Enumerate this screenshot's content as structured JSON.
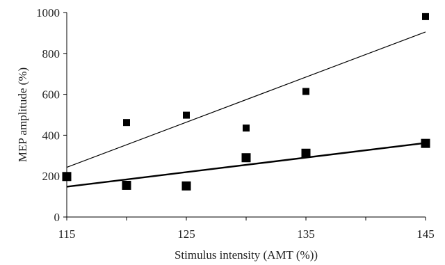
{
  "chart_data": {
    "type": "scatter",
    "title": "",
    "xlabel": "Stimulus intensity (AMT (%))",
    "ylabel": "MEP amplitude (%)",
    "xlim": [
      115,
      145
    ],
    "ylim": [
      0,
      1000
    ],
    "x_ticks": [
      115,
      120,
      125,
      130,
      135,
      140,
      145
    ],
    "x_tick_labels": [
      "115",
      "",
      "125",
      "",
      "135",
      "",
      "145"
    ],
    "y_ticks": [
      0,
      200,
      400,
      600,
      800,
      1000
    ],
    "y_tick_labels": [
      "0",
      "200",
      "400",
      "600",
      "800",
      "1000"
    ],
    "grid": false,
    "legend": "none",
    "series": [
      {
        "marker": "square-small",
        "color": "#000000",
        "points": [
          {
            "x": 120,
            "y": 462
          },
          {
            "x": 125,
            "y": 498
          },
          {
            "x": 130,
            "y": 435
          },
          {
            "x": 135,
            "y": 614
          },
          {
            "x": 145,
            "y": 980
          }
        ],
        "trendline": {
          "x": [
            115,
            145
          ],
          "y": [
            243,
            905
          ]
        }
      },
      {
        "marker": "square-large",
        "color": "#000000",
        "points": [
          {
            "x": 115,
            "y": 198
          },
          {
            "x": 120,
            "y": 155
          },
          {
            "x": 125,
            "y": 152
          },
          {
            "x": 130,
            "y": 290
          },
          {
            "x": 135,
            "y": 312
          },
          {
            "x": 145,
            "y": 360
          }
        ],
        "trendline": {
          "x": [
            115,
            145
          ],
          "y": [
            148,
            362
          ]
        }
      }
    ]
  }
}
